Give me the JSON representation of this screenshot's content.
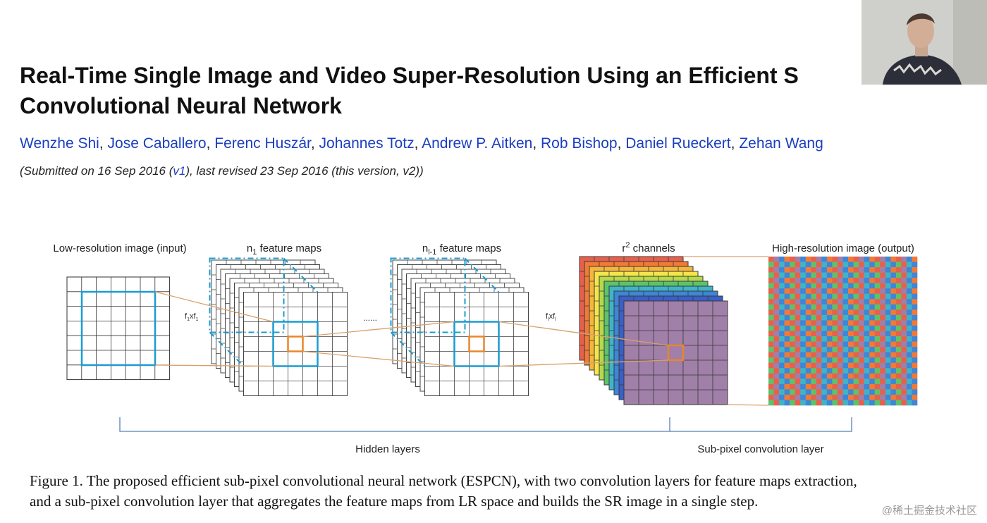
{
  "title_line1": "Real-Time Single Image and Video Super-Resolution Using an Efficient S",
  "title_line2": "Convolutional Neural Network",
  "authors": [
    "Wenzhe Shi",
    "Jose Caballero",
    "Ferenc Huszár",
    "Johannes Totz",
    "Andrew P. Aitken",
    "Rob Bishop",
    "Daniel Rueckert",
    "Zehan Wang"
  ],
  "submission": {
    "prefix": "(Submitted on 16 Sep 2016 (",
    "link": "v1",
    "suffix": "), last revised 23 Sep 2016 (this version, v2))"
  },
  "figure": {
    "label_input": "Low-resolution image (input)",
    "label_n1_prefix": "n",
    "label_n1_sub": "1",
    "label_n1_suffix": " feature maps",
    "label_nl_prefix": "n",
    "label_nl_sub": "l-1",
    "label_nl_suffix": " feature maps",
    "label_r2_prefix": "r",
    "label_r2_sup": "2",
    "label_r2_suffix": " channels",
    "label_output": "High-resolution image (output)",
    "kernel1_a": "f",
    "kernel1_sub_a": "1",
    "kernel1_b": "xf",
    "kernel1_sub_b": "1",
    "kernell_a": "f",
    "kernell_sub_a": "l",
    "kernell_b": "xf",
    "kernell_sub_b": "l",
    "ellipsis": "......",
    "hidden_layers": "Hidden layers",
    "subpixel_layer": "Sub-pixel convolution layer",
    "colors": {
      "blue_frame": "#1b9bd1",
      "orange": "#e8862a",
      "connector": "#d9a06a",
      "channels": [
        "#e8604c",
        "#f07a36",
        "#f6b53c",
        "#f4e64a",
        "#b6d84a",
        "#5cc36b",
        "#3fb4c8",
        "#3e86d6",
        "#3a5fc8",
        "#a07fa8"
      ]
    }
  },
  "caption_line1": "Figure 1. The proposed efficient sub-pixel convolutional neural network (ESPCN), with two convolution layers for feature maps extraction,",
  "caption_line2": "and a sub-pixel convolution layer that aggregates the feature maps from LR space and builds the SR image in a single step.",
  "watermark": "@稀土掘金技术社区"
}
